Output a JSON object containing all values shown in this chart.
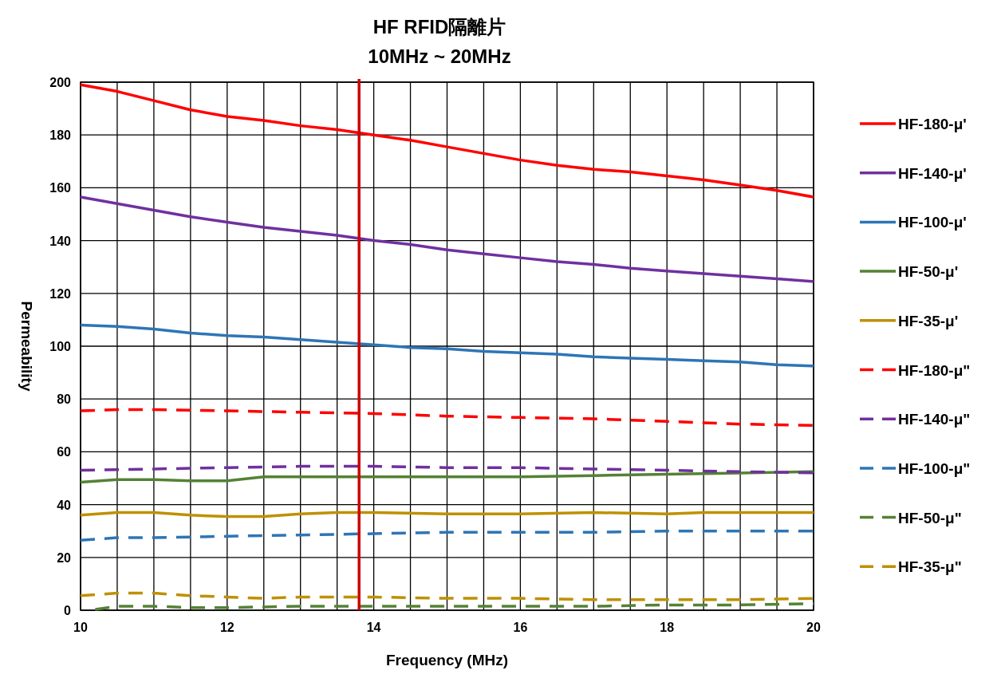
{
  "chart_data": {
    "type": "line",
    "title": "HF RFID隔離片",
    "subtitle": "10MHz ~ 20MHz",
    "xlabel": "Frequency (MHz)",
    "ylabel": "Permeability",
    "xlim": [
      10,
      20
    ],
    "xticks": [
      10,
      {
        "value": 10.5,
        "label": null
      },
      {
        "value": 11,
        "label": null
      },
      {
        "value": 11.5,
        "label": null
      },
      12,
      {
        "value": 12.5,
        "label": null
      },
      {
        "value": 13,
        "label": null
      },
      {
        "value": 13.5,
        "label": null
      },
      14,
      {
        "value": 14.5,
        "label": null
      },
      {
        "value": 15,
        "label": null
      },
      {
        "value": 15.5,
        "label": null
      },
      16,
      {
        "value": 16.5,
        "label": null
      },
      {
        "value": 17,
        "label": null
      },
      {
        "value": 17.5,
        "label": null
      },
      18,
      {
        "value": 18.5,
        "label": null
      },
      {
        "value": 19,
        "label": null
      },
      {
        "value": 19.5,
        "label": null
      },
      20
    ],
    "ylim": [
      0,
      200
    ],
    "yticks": [
      0,
      20,
      40,
      60,
      80,
      100,
      120,
      140,
      160,
      180,
      200
    ],
    "grid": true,
    "legend": "right",
    "marker": "none",
    "ref_lines": [
      {
        "axis": "x",
        "value": 13.8,
        "color": "#cc0000",
        "line_style": "solid"
      }
    ],
    "series": [
      {
        "name": "HF-180-μ'",
        "color": "#ff0000",
        "line_style": "solid",
        "x": [
          10,
          10.5,
          11,
          11.5,
          12,
          12.5,
          13,
          13.5,
          14,
          14.5,
          15,
          15.5,
          16,
          16.5,
          17,
          17.5,
          18,
          18.5,
          19,
          19.5,
          20
        ],
        "values": [
          199,
          196.5,
          193,
          189.5,
          187,
          185.5,
          183.5,
          182,
          180,
          178,
          175.5,
          173,
          170.5,
          168.5,
          167,
          166,
          164.5,
          163,
          161,
          159,
          156.5
        ]
      },
      {
        "name": "HF-140-μ'",
        "color": "#7030a0",
        "line_style": "solid",
        "x": [
          10,
          10.5,
          11,
          11.5,
          12,
          12.5,
          13,
          13.5,
          14,
          14.5,
          15,
          15.5,
          16,
          16.5,
          17,
          17.5,
          18,
          18.5,
          19,
          19.5,
          20
        ],
        "values": [
          156.5,
          154,
          151.5,
          149,
          147,
          145,
          143.5,
          142,
          140,
          138.5,
          136.5,
          135,
          133.5,
          132,
          131,
          129.5,
          128.5,
          127.5,
          126.5,
          125.5,
          124.5
        ]
      },
      {
        "name": "HF-100-μ'",
        "color": "#2e75b6",
        "line_style": "solid",
        "x": [
          10,
          10.5,
          11,
          11.5,
          12,
          12.5,
          13,
          13.5,
          14,
          14.5,
          15,
          15.5,
          16,
          16.5,
          17,
          17.5,
          18,
          18.5,
          19,
          19.5,
          20
        ],
        "values": [
          108,
          107.5,
          106.5,
          105,
          104,
          103.5,
          102.5,
          101.5,
          100.5,
          99.5,
          99,
          98,
          97.5,
          97,
          96,
          95.5,
          95,
          94.5,
          94,
          93,
          92.5
        ]
      },
      {
        "name": "HF-50-μ'",
        "color": "#548235",
        "line_style": "solid",
        "x": [
          10,
          10.5,
          11,
          11.5,
          12,
          12.5,
          13,
          13.5,
          14,
          15,
          16,
          17,
          18,
          19,
          20
        ],
        "values": [
          48.5,
          49.5,
          49.5,
          49,
          49,
          50.5,
          50.5,
          50.5,
          50.5,
          50.5,
          50.5,
          51,
          51.5,
          52,
          52.5
        ]
      },
      {
        "name": "HF-35-μ'",
        "color": "#bf9000",
        "line_style": "solid",
        "x": [
          10,
          10.5,
          11,
          11.5,
          12,
          12.5,
          13,
          13.5,
          14,
          15,
          16,
          17,
          18,
          18.5,
          19,
          20
        ],
        "values": [
          36,
          37,
          37,
          36,
          35.5,
          35.5,
          36.5,
          37,
          37,
          36.5,
          36.5,
          37,
          36.5,
          37,
          37,
          37
        ]
      },
      {
        "name": "HF-180-μ\"",
        "color": "#ff0000",
        "line_style": "dashed",
        "x": [
          10,
          10.5,
          11,
          12,
          13,
          14,
          15,
          16,
          17,
          18,
          19,
          20
        ],
        "values": [
          75.5,
          76,
          76,
          75.5,
          75,
          74.5,
          73.5,
          73,
          72.5,
          71.5,
          70.5,
          70
        ]
      },
      {
        "name": "HF-140-μ\"",
        "color": "#7030a0",
        "line_style": "dashed",
        "x": [
          10,
          11,
          12,
          13,
          14,
          15,
          16,
          17,
          18,
          19,
          20
        ],
        "values": [
          53,
          53.5,
          54,
          54.5,
          54.5,
          54,
          54,
          53.5,
          53,
          52.5,
          52
        ]
      },
      {
        "name": "HF-100-μ\"",
        "color": "#2e75b6",
        "line_style": "dashed",
        "x": [
          10,
          10.5,
          11,
          12,
          13,
          14,
          15,
          16,
          17,
          18,
          19,
          20
        ],
        "values": [
          26.5,
          27.5,
          27.5,
          28,
          28.5,
          29,
          29.5,
          29.5,
          29.5,
          30,
          30,
          30
        ]
      },
      {
        "name": "HF-50-μ\"",
        "color": "#548235",
        "line_style": "dashed",
        "x": [
          10.2,
          10.5,
          11,
          11.5,
          12,
          13,
          14,
          15,
          16,
          17,
          18,
          19,
          20
        ],
        "values": [
          0.3,
          1.5,
          1.5,
          1,
          1,
          1.5,
          1.5,
          1.5,
          1.5,
          1.5,
          2,
          2,
          2.5
        ]
      },
      {
        "name": "HF-35-μ\"",
        "color": "#bf9000",
        "line_style": "dashed",
        "x": [
          10,
          10.5,
          11,
          11.5,
          12,
          12.5,
          13,
          14,
          15,
          16,
          17,
          18,
          19,
          20
        ],
        "values": [
          5.5,
          6.5,
          6.5,
          5.5,
          5,
          4.5,
          5,
          5,
          4.5,
          4.5,
          4,
          4,
          4,
          4.5
        ]
      }
    ]
  }
}
